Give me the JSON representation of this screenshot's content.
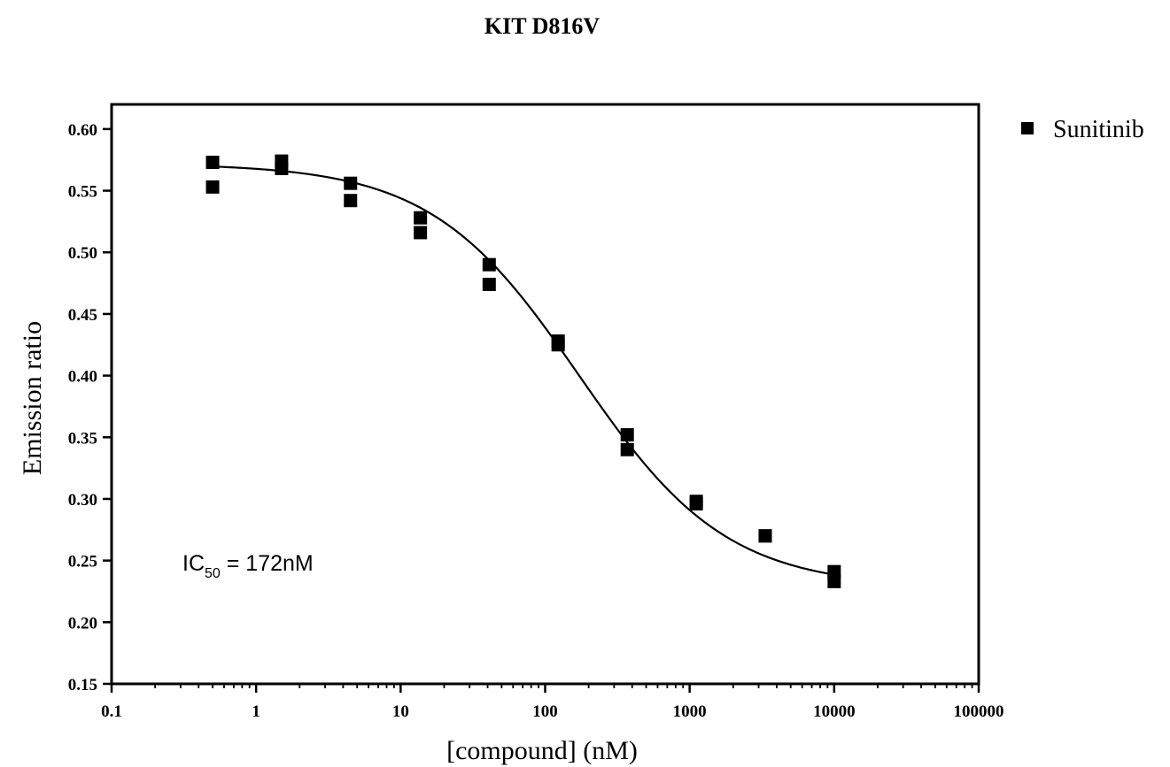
{
  "chart_data": {
    "type": "scatter",
    "title": "KIT D816V",
    "xlabel": "[compound] (nM)",
    "ylabel": "Emission ratio",
    "x_scale": "log",
    "xlim": [
      0.1,
      100000
    ],
    "ylim": [
      0.15,
      0.62
    ],
    "x_tick_labels": [
      "0.1",
      "1",
      "10",
      "100",
      "1000",
      "10000",
      "100000"
    ],
    "y_tick_labels": [
      "0.15",
      "0.20",
      "0.25",
      "0.30",
      "0.35",
      "0.40",
      "0.45",
      "0.50",
      "0.55",
      "0.60"
    ],
    "legend_position": "top-right-outside",
    "grid": false,
    "series": [
      {
        "name": "Sunitinib",
        "marker": "square",
        "color": "#000000",
        "points": [
          {
            "x": 0.5,
            "y": 0.573
          },
          {
            "x": 0.5,
            "y": 0.553
          },
          {
            "x": 1.5,
            "y": 0.574
          },
          {
            "x": 1.5,
            "y": 0.568
          },
          {
            "x": 4.5,
            "y": 0.556
          },
          {
            "x": 4.5,
            "y": 0.542
          },
          {
            "x": 13.7,
            "y": 0.528
          },
          {
            "x": 13.7,
            "y": 0.516
          },
          {
            "x": 41,
            "y": 0.49
          },
          {
            "x": 41,
            "y": 0.474
          },
          {
            "x": 123,
            "y": 0.428
          },
          {
            "x": 123,
            "y": 0.425
          },
          {
            "x": 370,
            "y": 0.352
          },
          {
            "x": 370,
            "y": 0.34
          },
          {
            "x": 1111,
            "y": 0.298
          },
          {
            "x": 1111,
            "y": 0.296
          },
          {
            "x": 3333,
            "y": 0.27
          },
          {
            "x": 3333,
            "y": 0.27
          },
          {
            "x": 10000,
            "y": 0.241
          },
          {
            "x": 10000,
            "y": 0.233
          }
        ]
      }
    ],
    "fit_curve": {
      "model": "four-parameter logistic",
      "top": 0.572,
      "bottom": 0.228,
      "ic50": 172,
      "hill_slope": 0.85,
      "x_range": [
        0.5,
        10000
      ]
    },
    "annotation": {
      "prefix": "IC",
      "subscript": "50",
      "suffix": " = 172nM"
    }
  }
}
